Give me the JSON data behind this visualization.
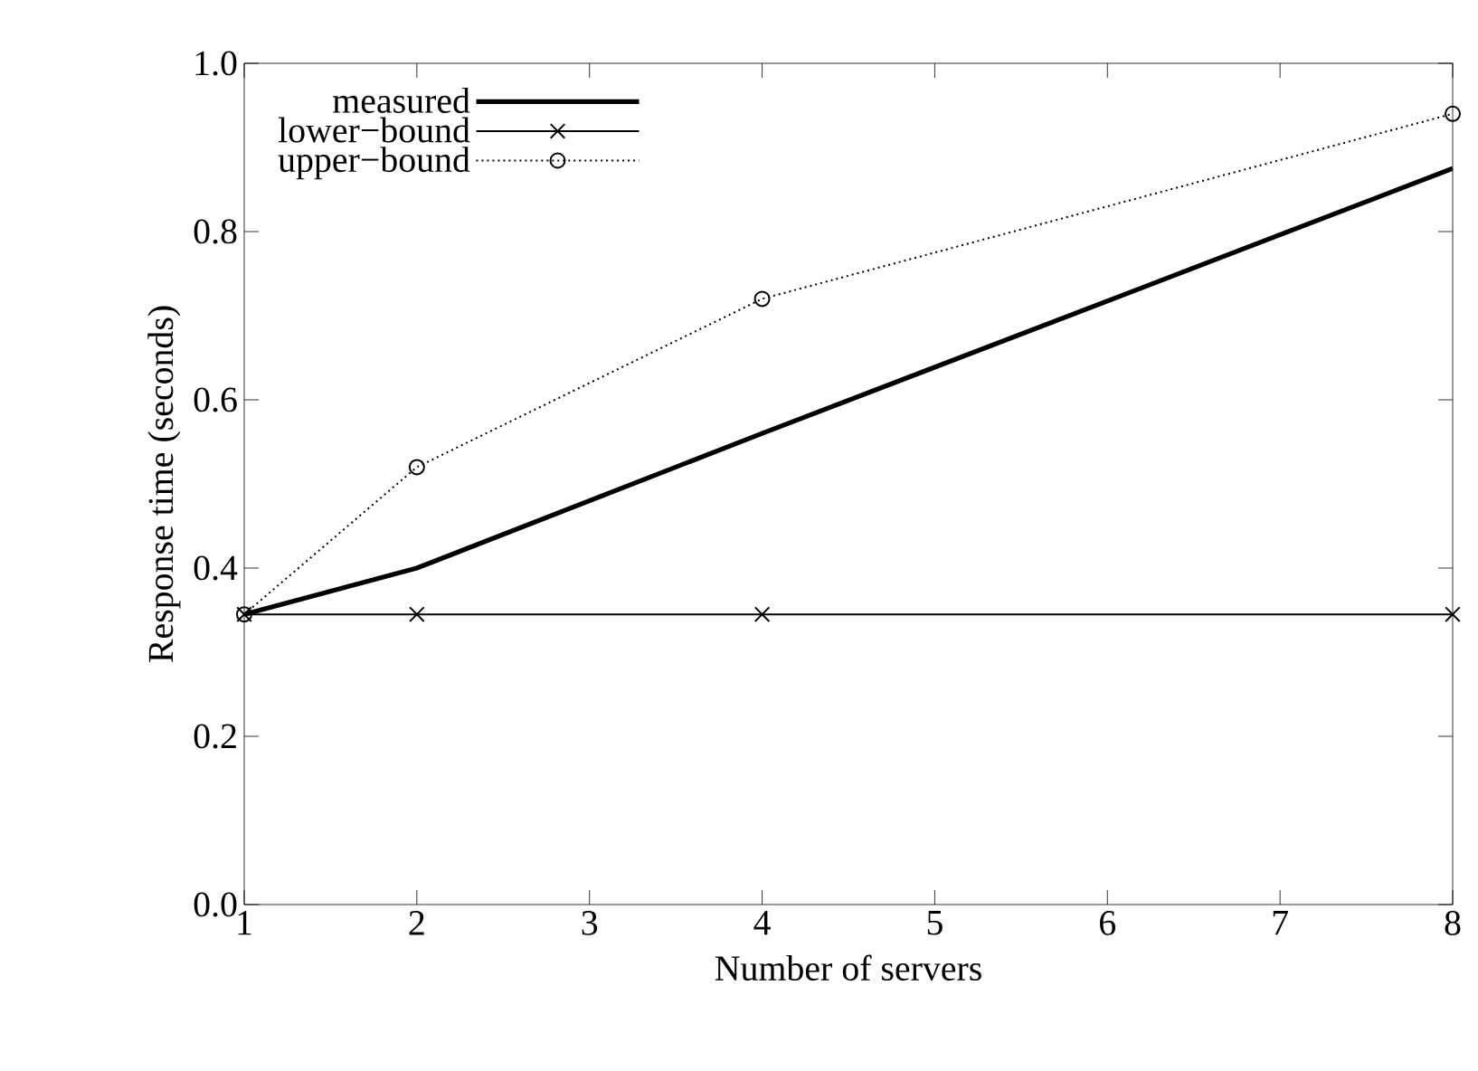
{
  "chart_data": {
    "type": "line",
    "xlabel": "Number of servers",
    "ylabel": "Response time (seconds)",
    "xlim": [
      1,
      8
    ],
    "xticks": [
      1,
      2,
      3,
      4,
      5,
      6,
      7,
      8
    ],
    "ylim": [
      0,
      1
    ],
    "yticks": [
      {
        "value": 0,
        "label": "0.0"
      },
      0.2,
      0.4,
      0.6,
      0.8,
      {
        "value": 1,
        "label": "1.0"
      }
    ],
    "grid": false,
    "legend": "top left",
    "series": [
      {
        "name": "measured",
        "color": "#000000",
        "x": [
          1,
          2,
          4,
          8
        ],
        "values": [
          0.345,
          0.4,
          0.56,
          0.875
        ],
        "marker": "none",
        "line_style": "solid"
      },
      {
        "name": "lower−bound",
        "color": "#000000",
        "x": [
          1,
          2,
          4,
          8
        ],
        "values": [
          0.345,
          0.345,
          0.345,
          0.345
        ],
        "marker": "cross",
        "line_style": "solid"
      },
      {
        "name": "upper−bound",
        "color": "#000000",
        "x": [
          1,
          2,
          4,
          8
        ],
        "values": [
          0.345,
          0.52,
          0.72,
          0.94
        ],
        "marker": "circle",
        "line_style": "dotted"
      }
    ]
  }
}
